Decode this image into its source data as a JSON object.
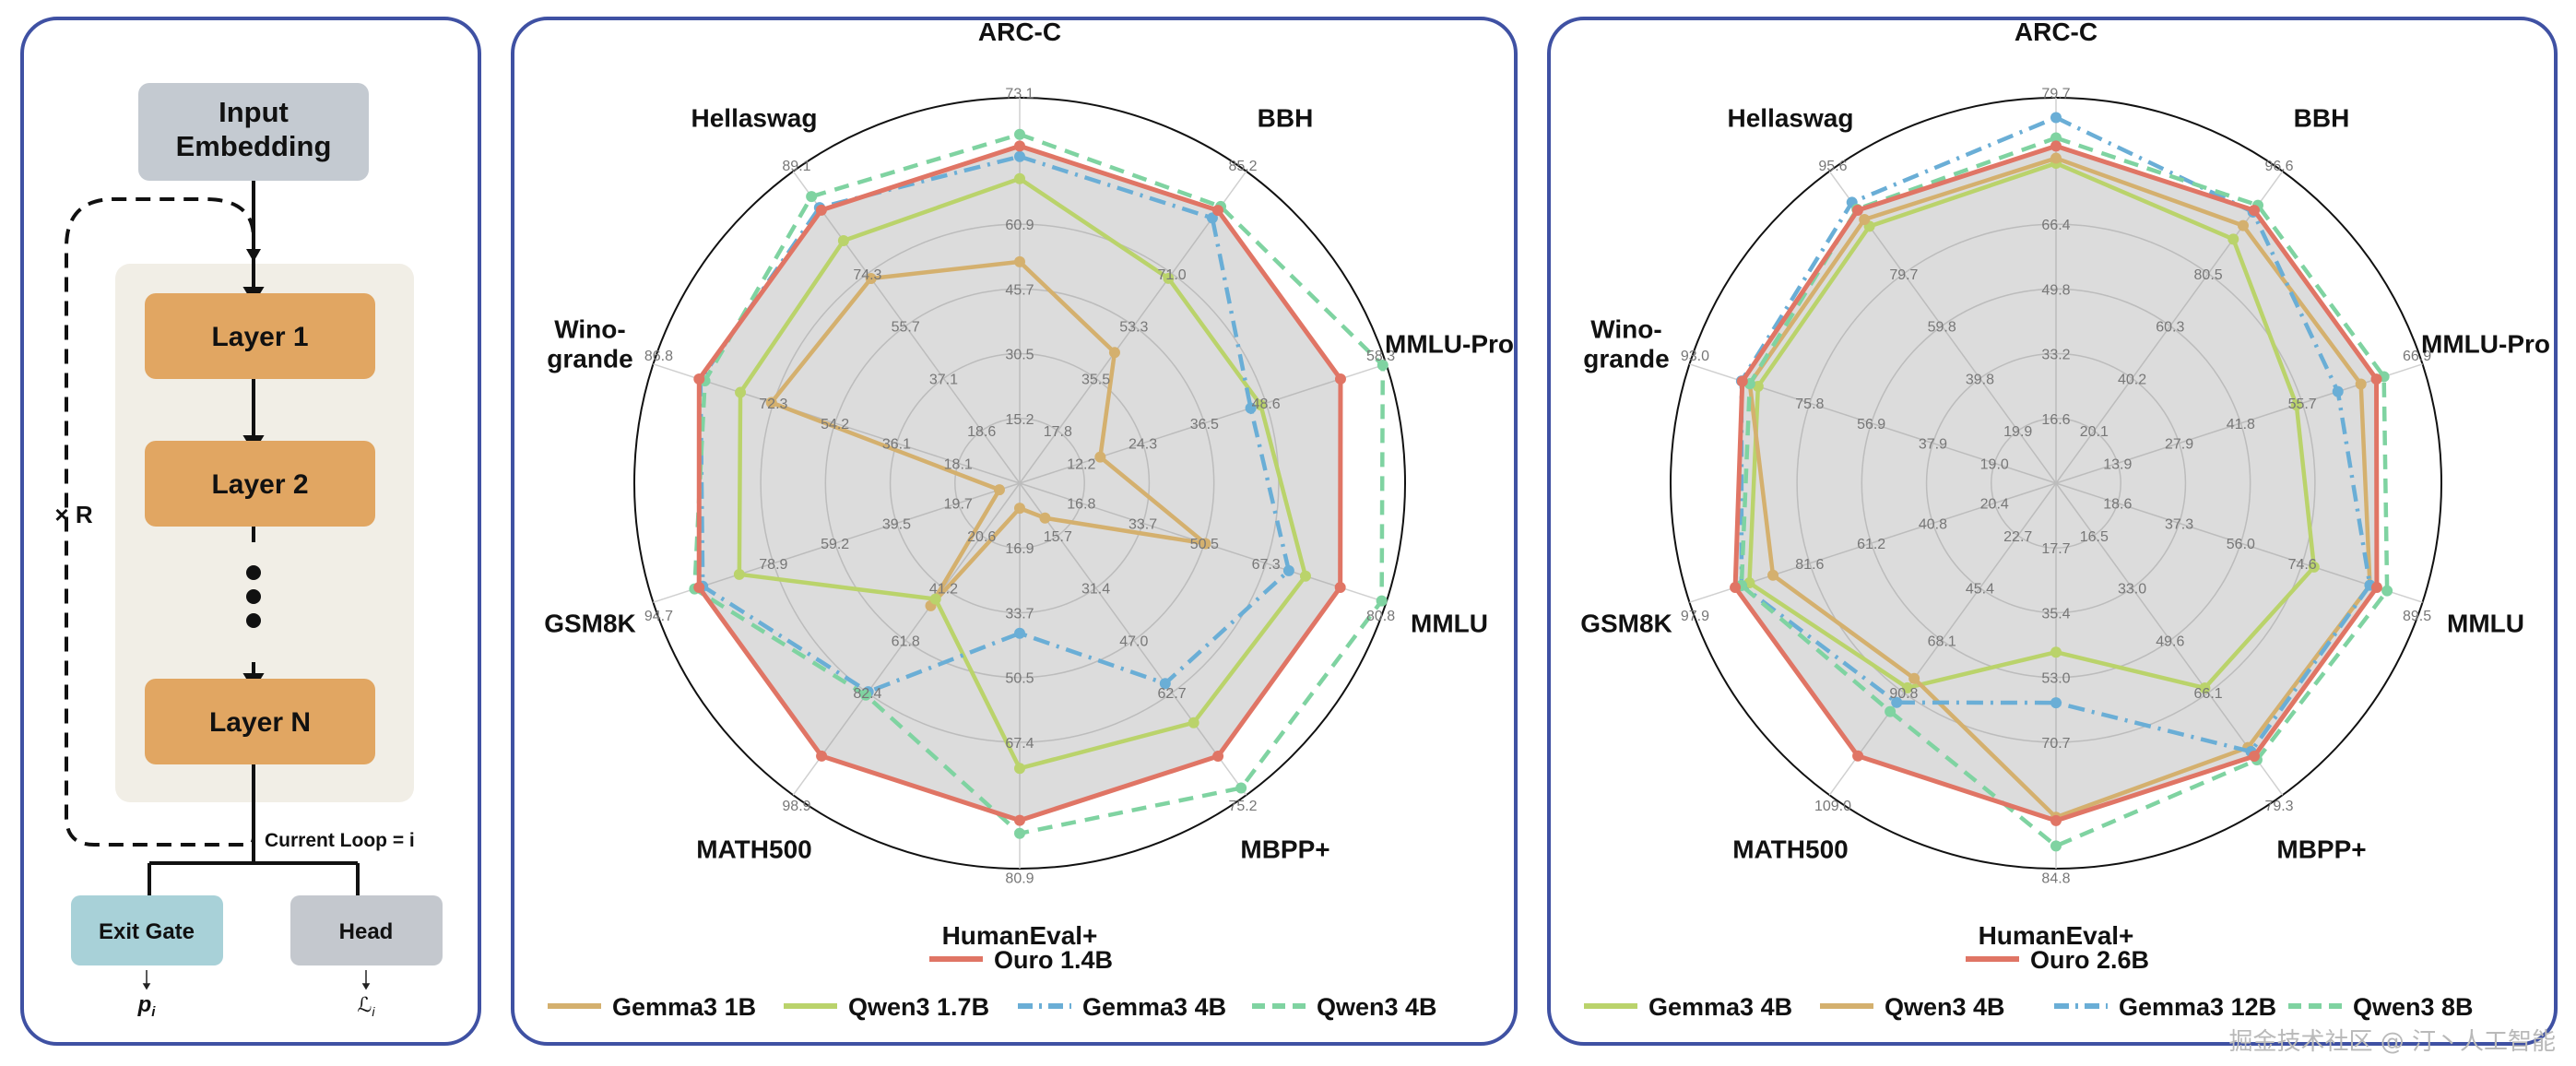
{
  "architecture": {
    "input_embedding": "Input Embedding",
    "layers": [
      "Layer 1",
      "Layer 2",
      "Layer N"
    ],
    "repeat_label": "× R",
    "loop_label": "Current Loop = i",
    "exit_gate": "Exit Gate",
    "head": "Head",
    "exit_symbol": "p",
    "exit_sub": "i",
    "head_symbol": "ℒ",
    "head_sub": "i",
    "colors": {
      "input": "#c4cad1",
      "layer": "#e1a662",
      "layer_bg": "#f1eee6",
      "exit_gate": "#a8d1d8",
      "head": "#c4c8ce"
    }
  },
  "chart_data": [
    {
      "type": "radar",
      "axes": [
        "ARC-C",
        "BBH",
        "MMLU-Pro",
        "MMLU",
        "MBPP+",
        "HumanEval+",
        "MATH500",
        "GSM8K",
        "Wino-grande",
        "Hellaswag"
      ],
      "axis_max": [
        73.1,
        85.2,
        58.3,
        80.8,
        75.2,
        80.9,
        98.9,
        94.7,
        86.8,
        89.1
      ],
      "ring_labels": [
        [
          "15.2",
          "30.5",
          "45.7",
          "60.9"
        ],
        [
          "17.8",
          "35.5",
          "53.3",
          "71.0"
        ],
        [
          "12.2",
          "24.3",
          "36.5",
          "48.6"
        ],
        [
          "16.8",
          "33.7",
          "50.5",
          "67.3"
        ],
        [
          "15.7",
          "31.4",
          "47.0",
          "62.7"
        ],
        [
          "16.9",
          "33.7",
          "50.5",
          "67.4"
        ],
        [
          "20.6",
          "41.2",
          "61.8",
          "82.4"
        ],
        [
          "19.7",
          "39.5",
          "59.2",
          "78.9"
        ],
        [
          "18.1",
          "36.1",
          "54.2",
          "72.3"
        ],
        [
          "18.6",
          "37.1",
          "55.7",
          "74.3"
        ]
      ],
      "series": [
        {
          "name": "Ouro 1.4B",
          "color": "#e07565",
          "style": "solid",
          "values": [
            60.9,
            71.0,
            48.6,
            67.3,
            62.7,
            67.4,
            82.4,
            78.9,
            72.3,
            74.3
          ]
        },
        {
          "name": "Gemma3 1B",
          "color": "#d4b06e",
          "style": "solid",
          "values": [
            40.0,
            34.0,
            12.2,
            39.0,
            8.0,
            5.0,
            37.0,
            5.0,
            56.0,
            55.7
          ]
        },
        {
          "name": "Qwen3 1.7B",
          "color": "#bad36b",
          "style": "solid",
          "values": [
            55.0,
            53.3,
            36.5,
            60.0,
            55.0,
            57.0,
            35.0,
            69.0,
            63.0,
            66.0
          ]
        },
        {
          "name": "Gemma3 4B",
          "color": "#6aaed6",
          "style": "dashdot",
          "values": [
            59.0,
            69.0,
            35.0,
            56.5,
            46.0,
            30.0,
            63.0,
            78.0,
            72.0,
            75.0
          ]
        },
        {
          "name": "Qwen3 4B",
          "color": "#7fd3a1",
          "style": "dashed",
          "values": [
            63.0,
            72.0,
            55.0,
            76.0,
            70.0,
            70.0,
            64.0,
            80.0,
            71.0,
            78.0
          ]
        }
      ],
      "legend_top": [
        "Ouro 1.4B"
      ],
      "legend_bottom": [
        "Gemma3 1B",
        "Qwen3 1.7B",
        "Gemma3 4B",
        "Qwen3 4B"
      ]
    },
    {
      "type": "radar",
      "axes": [
        "ARC-C",
        "BBH",
        "MMLU-Pro",
        "MMLU",
        "MBPP+",
        "HumanEval+",
        "MATH500",
        "GSM8K",
        "Wino-grande",
        "Hellaswag"
      ],
      "axis_max": [
        79.7,
        96.6,
        66.9,
        89.5,
        79.3,
        84.8,
        109.0,
        97.9,
        93.0,
        95.6
      ],
      "ring_labels": [
        [
          "16.6",
          "33.2",
          "49.8",
          "66.4"
        ],
        [
          "20.1",
          "40.2",
          "60.3",
          "80.5"
        ],
        [
          "13.9",
          "27.9",
          "41.8",
          "55.7"
        ],
        [
          "18.6",
          "37.3",
          "56.0",
          "74.6"
        ],
        [
          "16.5",
          "33.0",
          "49.6",
          "66.1"
        ],
        [
          "17.7",
          "35.4",
          "53.0",
          "70.7"
        ],
        [
          "22.7",
          "45.4",
          "68.1",
          "90.8"
        ],
        [
          "20.4",
          "40.8",
          "61.2",
          "81.6"
        ],
        [
          "19.0",
          "37.9",
          "56.9",
          "75.8"
        ],
        [
          "19.9",
          "39.8",
          "59.8",
          "79.7"
        ]
      ],
      "series": [
        {
          "name": "Ouro 2.6B",
          "color": "#e07565",
          "style": "solid",
          "values": [
            66.4,
            80.5,
            55.7,
            74.6,
            66.1,
            70.7,
            90.8,
            81.6,
            75.8,
            79.7
          ]
        },
        {
          "name": "Gemma3 4B",
          "color": "#bad36b",
          "style": "solid",
          "values": [
            63.0,
            72.0,
            41.8,
            60.0,
            49.6,
            35.4,
            68.1,
            78.0,
            72.0,
            75.0
          ]
        },
        {
          "name": "Qwen3 4B",
          "color": "#d4b06e",
          "style": "solid",
          "values": [
            64.0,
            76.0,
            53.0,
            73.0,
            64.0,
            70.0,
            65.0,
            72.0,
            74.0,
            77.0
          ]
        },
        {
          "name": "Gemma3 12B",
          "color": "#6aaed6",
          "style": "dashdot",
          "values": [
            72.0,
            80.0,
            49.0,
            73.0,
            65.0,
            46.0,
            73.0,
            80.0,
            76.0,
            82.0
          ]
        },
        {
          "name": "Qwen3 8B",
          "color": "#7fd3a1",
          "style": "dashed",
          "values": [
            68.0,
            82.0,
            57.0,
            77.0,
            67.0,
            76.0,
            76.0,
            80.0,
            74.0,
            80.0
          ]
        }
      ],
      "legend_top": [
        "Ouro 2.6B"
      ],
      "legend_bottom": [
        "Gemma3 4B",
        "Qwen3 4B",
        "Gemma3 12B",
        "Qwen3 8B"
      ]
    }
  ],
  "watermark": "掘金技术社区 @ 汀丶人工智能"
}
